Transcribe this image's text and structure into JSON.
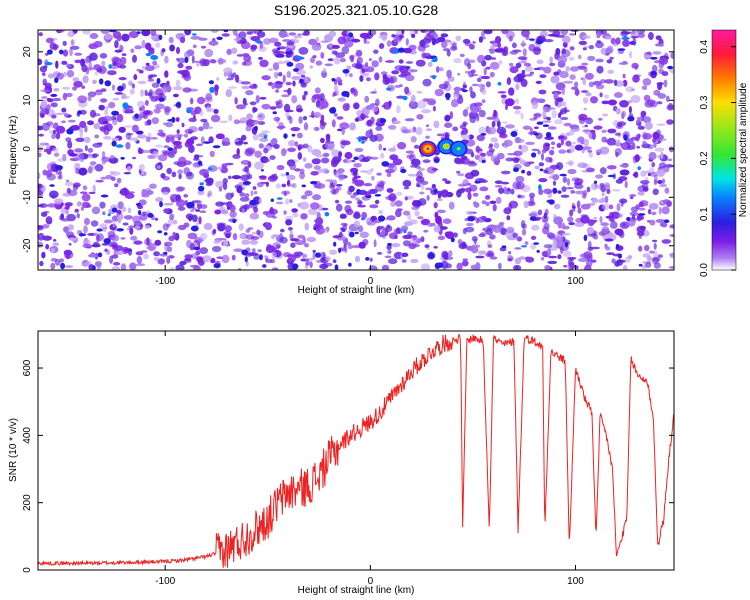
{
  "figure_title": "S196.2025.321.05.10.G28",
  "chart_data": [
    {
      "type": "heatmap",
      "title": "S196.2025.321.05.10.G28",
      "xlabel": "Height of straight line (km)",
      "ylabel": "Frequency (Hz)",
      "xlim": [
        -162,
        148
      ],
      "ylim": [
        -25,
        24.5
      ],
      "xticks": [
        -100,
        0,
        100
      ],
      "yticks": [
        -20,
        -10,
        0,
        10,
        20
      ],
      "colorbar": {
        "label": "Normalized spectral amplitude",
        "range": [
          0,
          0.43
        ],
        "ticks": [
          0.0,
          0.1,
          0.2,
          0.3,
          0.4
        ],
        "colormap": [
          "#ffffff",
          "#b07df0",
          "#7a1ee6",
          "#2a1fe0",
          "#0a7fff",
          "#00e5e5",
          "#33e633",
          "#9fe61a",
          "#ffdd00",
          "#ff7a00",
          "#ff1a3c",
          "#ff1aa0"
        ]
      },
      "peaks": [
        {
          "x": 28,
          "y": 0,
          "value": 0.42
        },
        {
          "x": 37,
          "y": 0.5,
          "value": 0.25
        },
        {
          "x": 43,
          "y": 0,
          "value": 0.18
        }
      ],
      "grid": false
    },
    {
      "type": "line",
      "xlabel": "Height of straight line (km)",
      "ylabel": "SNR (10 * v/v)",
      "xlim": [
        -162,
        148
      ],
      "ylim": [
        0,
        710
      ],
      "xticks": [
        -100,
        0,
        100
      ],
      "yticks": [
        0,
        200,
        400,
        600
      ],
      "color": "#ee2222",
      "series": [
        {
          "x": [
            -162,
            -140,
            -120,
            -100,
            -90,
            -80,
            -70,
            -60,
            -50,
            -45,
            -40,
            -35,
            -30,
            -25,
            -20,
            -15,
            -10,
            -5,
            0,
            5,
            10,
            15,
            20,
            25,
            30,
            35,
            40,
            44,
            45,
            47,
            50,
            55,
            58,
            60,
            62,
            65,
            70,
            72,
            75,
            80,
            84,
            85,
            88,
            90,
            95,
            97,
            100,
            105,
            108,
            110,
            112,
            115,
            118,
            120,
            125,
            127,
            130,
            135,
            138,
            140,
            143,
            145,
            148
          ],
          "y": [
            20,
            20,
            22,
            25,
            30,
            40,
            60,
            100,
            150,
            200,
            230,
            240,
            250,
            280,
            330,
            370,
            400,
            420,
            440,
            470,
            510,
            550,
            590,
            620,
            650,
            670,
            680,
            690,
            120,
            680,
            690,
            680,
            120,
            690,
            680,
            670,
            680,
            120,
            690,
            680,
            660,
            120,
            650,
            640,
            620,
            60,
            600,
            500,
            470,
            90,
            460,
            400,
            300,
            40,
            150,
            630,
            580,
            560,
            450,
            70,
            150,
            300,
            470
          ]
        }
      ],
      "grid": false
    }
  ]
}
